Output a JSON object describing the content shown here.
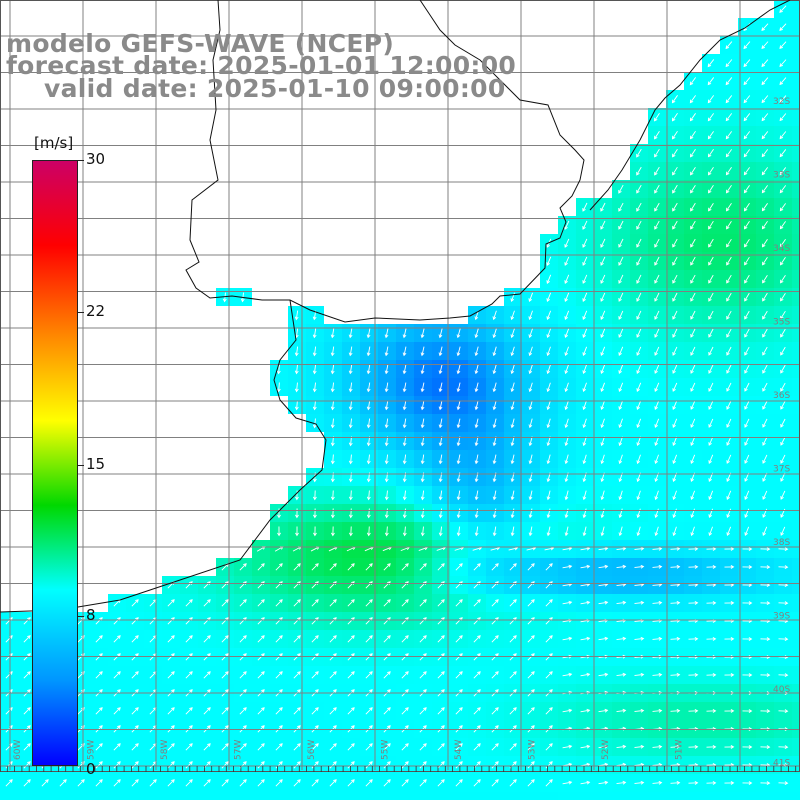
{
  "header": {
    "line1": "modelo GEFS-WAVE (NCEP)",
    "line2": "forecast date: 2025-01-01 12:00:00",
    "line3": "valid date: 2025-01-10 09:00:00"
  },
  "colorbar": {
    "unit": "[m/s]",
    "labels": [
      "30",
      "22",
      "15",
      "8",
      "0"
    ],
    "min": 0,
    "max": 30,
    "stops": [
      "#0000ff",
      "#0096ff",
      "#00ffff",
      "#00d800",
      "#ffff00",
      "#ff8800",
      "#ff0000",
      "#cc0066"
    ]
  },
  "map": {
    "lon_labels": [
      "60W",
      "59W",
      "58W",
      "57W",
      "56W",
      "55W",
      "54W",
      "53W",
      "52W",
      "51W"
    ],
    "lat_labels": [
      "32S",
      "33S",
      "34S",
      "35S",
      "36S",
      "37S",
      "38S",
      "39S",
      "40S",
      "41S"
    ],
    "land_color": "#ffffff",
    "grid_color": "#808080",
    "vector_color": "#ffffff"
  }
}
